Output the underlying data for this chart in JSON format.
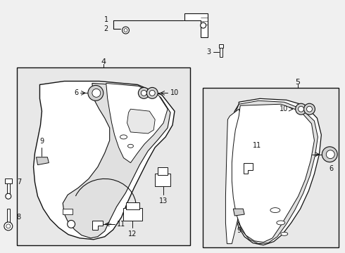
{
  "bg": "#f0f0f0",
  "white": "#ffffff",
  "black": "#111111",
  "box_fill": "#e8e8e8",
  "panel_fill": "#ffffff",
  "part_gray": "#c8c8c8"
}
